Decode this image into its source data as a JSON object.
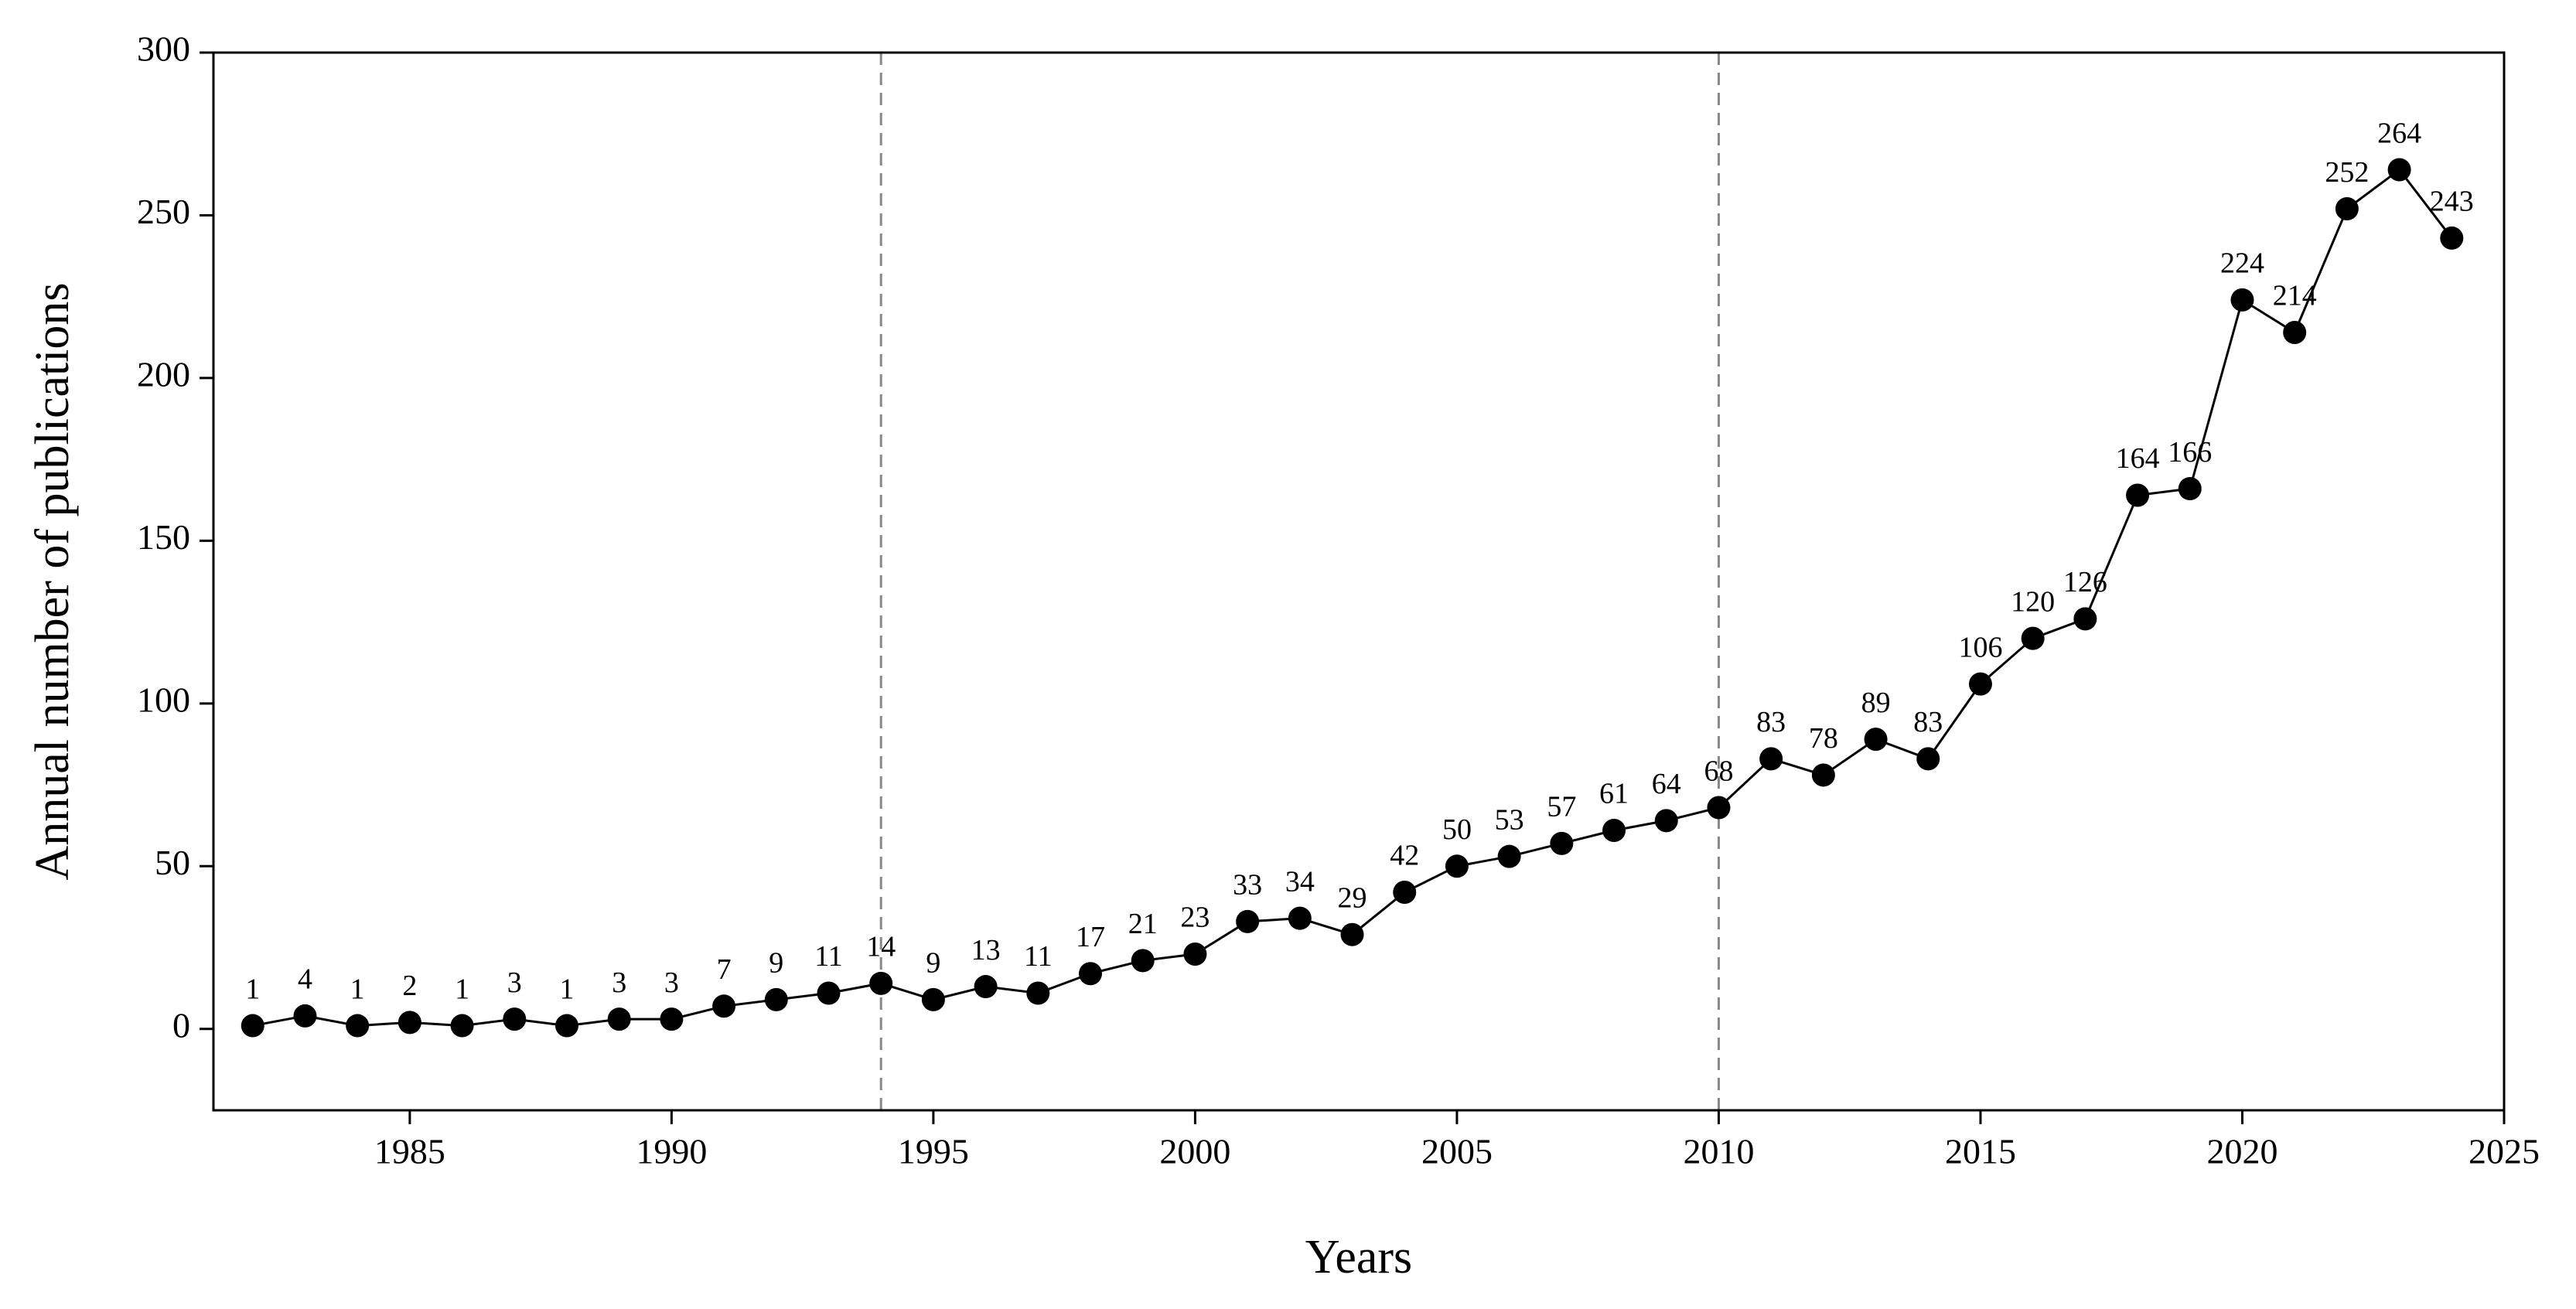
{
  "chart_data": {
    "type": "line",
    "x_label": "Years",
    "y_label": "Annual number of publications",
    "x": [
      1982,
      1983,
      1984,
      1985,
      1986,
      1987,
      1988,
      1989,
      1990,
      1991,
      1992,
      1993,
      1994,
      1995,
      1996,
      1997,
      1998,
      1999,
      2000,
      2001,
      2002,
      2003,
      2004,
      2005,
      2006,
      2007,
      2008,
      2009,
      2010,
      2011,
      2012,
      2013,
      2014,
      2015,
      2016,
      2017,
      2018,
      2019,
      2020,
      2021,
      2022,
      2023,
      2024
    ],
    "values": [
      1,
      4,
      1,
      2,
      1,
      3,
      1,
      3,
      3,
      7,
      9,
      11,
      14,
      9,
      13,
      11,
      17,
      21,
      23,
      33,
      34,
      29,
      42,
      50,
      53,
      57,
      61,
      64,
      68,
      83,
      78,
      89,
      83,
      106,
      120,
      126,
      164,
      166,
      224,
      214,
      252,
      264,
      243
    ],
    "color": "#000000",
    "xlim": [
      1981.25,
      2025
    ],
    "ylim": [
      -25,
      300
    ],
    "xticks": [
      1985,
      1990,
      1995,
      2000,
      2005,
      2010,
      2015,
      2020,
      2025
    ],
    "yticks": [
      0,
      50,
      100,
      150,
      200,
      250,
      300
    ],
    "reference_lines": [
      1994,
      2010
    ],
    "grid": false
  }
}
